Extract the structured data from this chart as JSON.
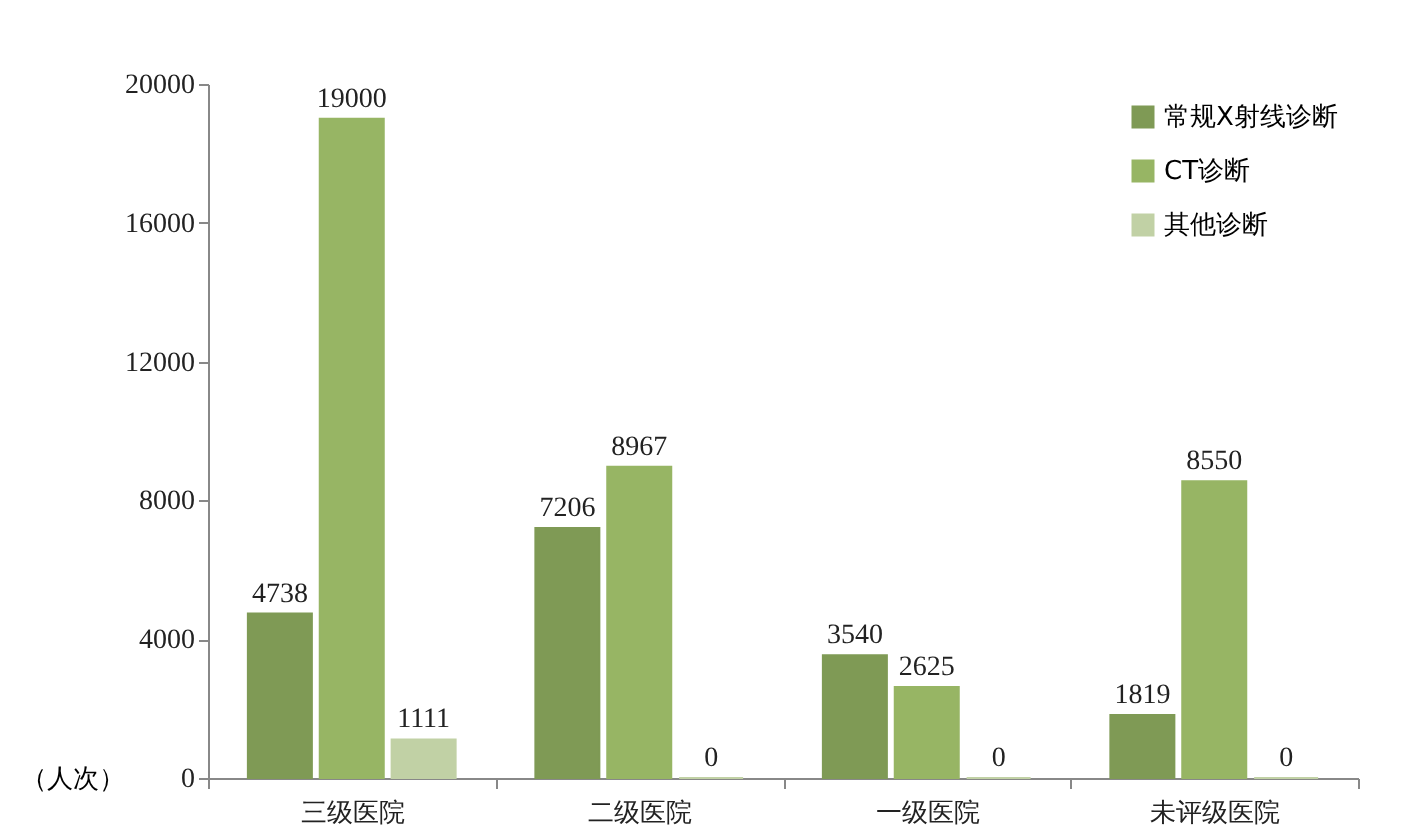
{
  "chart_data": {
    "type": "bar",
    "ylabel": "（人次）",
    "categories": [
      "三级医院",
      "二级医院",
      "一级医院",
      "未评级医院"
    ],
    "series": [
      {
        "name": "常规X射线诊断",
        "color": "#7f9a55",
        "values": [
          4738,
          7206,
          3540,
          1819
        ]
      },
      {
        "name": "CT诊断",
        "color": "#97b564",
        "values": [
          19000,
          8967,
          2625,
          8550
        ]
      },
      {
        "name": "其他诊断",
        "color": "#c1d1a5",
        "values": [
          1111,
          0,
          0,
          0
        ]
      }
    ],
    "ylim": [
      0,
      20000
    ],
    "yticks": [
      0,
      4000,
      8000,
      12000,
      16000,
      20000
    ],
    "data_labels": true,
    "legend": "top right",
    "grid": false
  }
}
